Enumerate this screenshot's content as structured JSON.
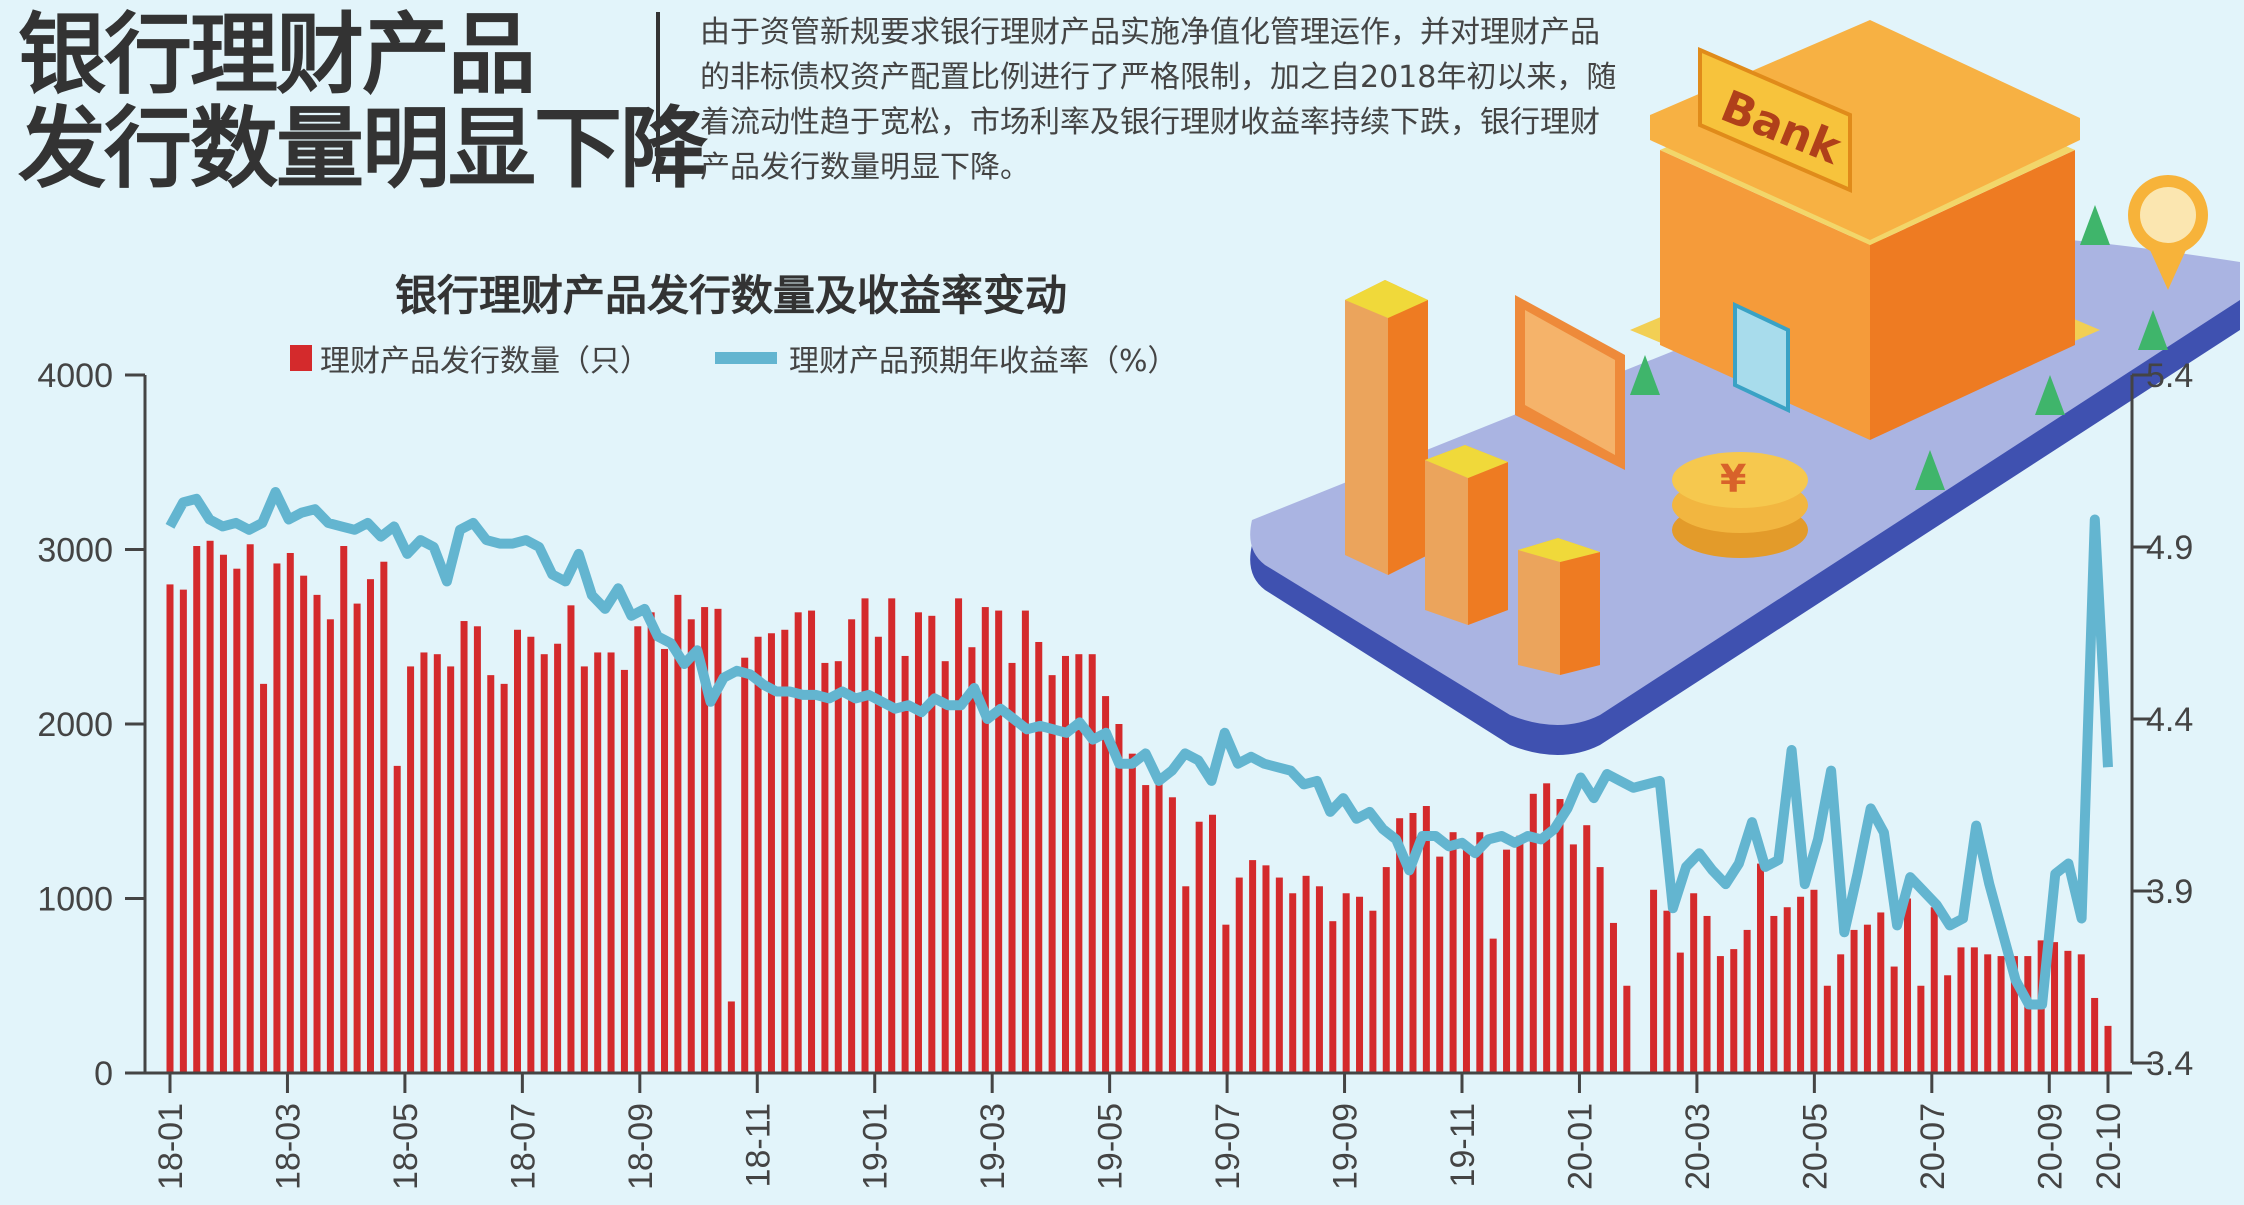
{
  "headline": {
    "line1": "银行理财产品",
    "line2": "发行数量明显下降"
  },
  "intro": "由于资管新规要求银行理财产品实施净值化管理运作，并对理财产品的非标债权资产配置比例进行了严格限制，加之自2018年初以来，随着流动性趋于宽松，市场利率及银行理财收益率持续下跌，银行理财产品发行数量明显下降。",
  "illustration": {
    "sign": "Bank"
  },
  "colors": {
    "bar": "#d42a2c",
    "line": "#63b5d0",
    "background": "#e2f4fa"
  },
  "chart_data": {
    "type": "bar+line",
    "title": "银行理财产品发行数量及收益率变动",
    "legend_placement": "top",
    "series": [
      {
        "name": "理财产品发行数量（只）",
        "type": "bar",
        "axis": "left",
        "values": [
          2800,
          2770,
          3020,
          3050,
          2970,
          2890,
          3030,
          2230,
          2920,
          2980,
          2850,
          2740,
          2600,
          3020,
          2690,
          2830,
          2930,
          1760,
          2330,
          2410,
          2400,
          2330,
          2590,
          2560,
          2280,
          2230,
          2540,
          2500,
          2400,
          2460,
          2680,
          2330,
          2410,
          2410,
          2310,
          2560,
          2640,
          2430,
          2740,
          2600,
          2670,
          2660,
          410,
          2380,
          2500,
          2520,
          2540,
          2640,
          2650,
          2350,
          2360,
          2600,
          2720,
          2500,
          2720,
          2390,
          2640,
          2620,
          2360,
          2720,
          2440,
          2670,
          2650,
          2350,
          2650,
          2470,
          2280,
          2390,
          2400,
          2400,
          2160,
          2000,
          1830,
          1650,
          1660,
          1580,
          1070,
          1440,
          1480,
          850,
          1120,
          1220,
          1190,
          1120,
          1030,
          1130,
          1070,
          870,
          1030,
          1010,
          930,
          1180,
          1460,
          1490,
          1530,
          1240,
          1380,
          1310,
          1380,
          770,
          1280,
          1360,
          1600,
          1660,
          1570,
          1310,
          1420,
          1180,
          860,
          500,
          0,
          1050,
          930,
          690,
          1030,
          900,
          670,
          710,
          820,
          1200,
          900,
          950,
          1010,
          1050,
          500,
          680,
          820,
          850,
          920,
          610,
          1000,
          500,
          950,
          560,
          720,
          720,
          680,
          670,
          670,
          670,
          760,
          750,
          700,
          680,
          430,
          270
        ]
      },
      {
        "name": "理财产品预期年收益率（%）",
        "type": "line",
        "axis": "right",
        "values": [
          4.96,
          5.03,
          5.04,
          4.98,
          4.96,
          4.97,
          4.95,
          4.97,
          5.06,
          4.98,
          5.0,
          5.01,
          4.97,
          4.96,
          4.95,
          4.97,
          4.93,
          4.96,
          4.88,
          4.92,
          4.9,
          4.8,
          4.95,
          4.97,
          4.92,
          4.91,
          4.91,
          4.92,
          4.9,
          4.82,
          4.8,
          4.88,
          4.76,
          4.72,
          4.78,
          4.7,
          4.72,
          4.64,
          4.62,
          4.56,
          4.6,
          4.45,
          4.52,
          4.54,
          4.53,
          4.5,
          4.48,
          4.48,
          4.47,
          4.47,
          4.46,
          4.48,
          4.46,
          4.47,
          4.45,
          4.43,
          4.44,
          4.42,
          4.46,
          4.44,
          4.44,
          4.49,
          4.4,
          4.43,
          4.4,
          4.37,
          4.38,
          4.37,
          4.36,
          4.39,
          4.34,
          4.36,
          4.27,
          4.27,
          4.3,
          4.22,
          4.25,
          4.3,
          4.28,
          4.22,
          4.36,
          4.27,
          4.29,
          4.27,
          4.26,
          4.25,
          4.21,
          4.22,
          4.13,
          4.17,
          4.11,
          4.13,
          4.08,
          4.05,
          3.96,
          4.06,
          4.06,
          4.03,
          4.04,
          4.01,
          4.05,
          4.06,
          4.04,
          4.06,
          4.05,
          4.08,
          4.14,
          4.23,
          4.17,
          4.24,
          4.22,
          4.2,
          4.21,
          4.22,
          3.85,
          3.97,
          4.01,
          3.96,
          3.92,
          3.98,
          4.1,
          3.97,
          3.99,
          4.31,
          3.92,
          4.05,
          4.25,
          3.78,
          3.95,
          4.14,
          4.07,
          3.8,
          3.94,
          3.9,
          3.86,
          3.8,
          3.82,
          4.09,
          3.92,
          3.78,
          3.64,
          3.57,
          3.57,
          3.95,
          3.98,
          3.82,
          4.98,
          4.26
        ]
      }
    ],
    "y_left": {
      "range": [
        0,
        4000
      ],
      "ticks": [
        "0",
        "1000",
        "2000",
        "3000",
        "4000"
      ]
    },
    "y_right": {
      "range": [
        3.4,
        5.4
      ],
      "ticks": [
        "3.4",
        "3.9",
        "4.4",
        "4.9",
        "5.4"
      ]
    },
    "x_ticks": [
      "18-01",
      "18-03",
      "18-05",
      "18-07",
      "18-09",
      "18-11",
      "19-01",
      "19-03",
      "19-05",
      "19-07",
      "19-09",
      "19-11",
      "20-01",
      "20-03",
      "20-05",
      "20-07",
      "20-09",
      "20-10"
    ],
    "x_range": [
      "2018-01",
      "2020-10"
    ],
    "grid": false
  }
}
